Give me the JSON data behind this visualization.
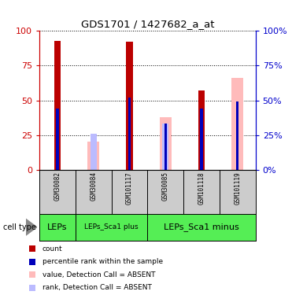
{
  "title": "GDS1701 / 1427682_a_at",
  "samples": [
    "GSM30082",
    "GSM30084",
    "GSM101117",
    "GSM30085",
    "GSM101118",
    "GSM101119"
  ],
  "red_bars": [
    93,
    0,
    92,
    0,
    57,
    0
  ],
  "blue_bars": [
    44,
    0,
    52,
    33,
    44,
    49
  ],
  "pink_bars": [
    0,
    20,
    0,
    38,
    0,
    66
  ],
  "light_blue_bars": [
    0,
    26,
    0,
    33,
    0,
    0
  ],
  "cell_types": [
    {
      "label": "LEPs",
      "start": 0,
      "end": 1
    },
    {
      "label": "LEPs_Sca1 plus",
      "start": 1,
      "end": 3
    },
    {
      "label": "LEPs_Sca1 minus",
      "start": 3,
      "end": 6
    }
  ],
  "yticks": [
    0,
    25,
    50,
    75,
    100
  ],
  "red_color": "#bb0000",
  "blue_color": "#0000bb",
  "pink_color": "#ffbbbb",
  "light_blue_color": "#bbbbff",
  "ylabel_left_color": "#cc0000",
  "ylabel_right_color": "#0000cc",
  "sample_bg_color": "#cccccc",
  "cell_type_color": "#55ee55",
  "bg_color": "#ffffff"
}
